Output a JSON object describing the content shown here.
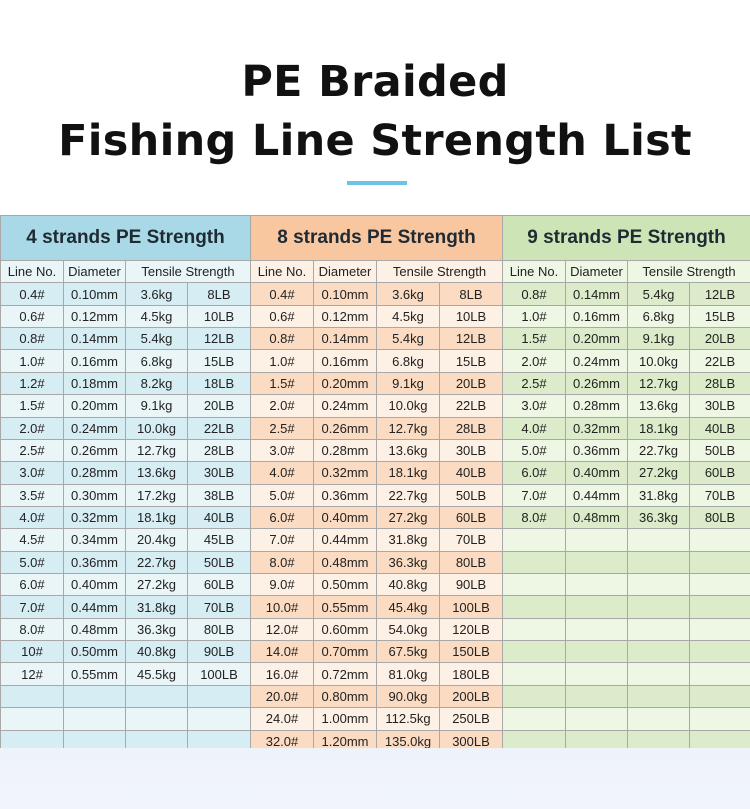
{
  "title_line1": "PE Braided",
  "title_line2": "Fishing Line Strength List",
  "colors": {
    "panel1": "#a9d9e6",
    "panel2": "#f8c7a0",
    "panel3": "#cde4b6",
    "accent": "#6cc3e6"
  },
  "tables": [
    {
      "title": "4 strands PE Strength",
      "columns": [
        "Line No.",
        "Diameter",
        "Tensile Strength"
      ],
      "rows": [
        [
          "0.4#",
          "0.10mm",
          "3.6kg",
          "8LB"
        ],
        [
          "0.6#",
          "0.12mm",
          "4.5kg",
          "10LB"
        ],
        [
          "0.8#",
          "0.14mm",
          "5.4kg",
          "12LB"
        ],
        [
          "1.0#",
          "0.16mm",
          "6.8kg",
          "15LB"
        ],
        [
          "1.2#",
          "0.18mm",
          "8.2kg",
          "18LB"
        ],
        [
          "1.5#",
          "0.20mm",
          "9.1kg",
          "20LB"
        ],
        [
          "2.0#",
          "0.24mm",
          "10.0kg",
          "22LB"
        ],
        [
          "2.5#",
          "0.26mm",
          "12.7kg",
          "28LB"
        ],
        [
          "3.0#",
          "0.28mm",
          "13.6kg",
          "30LB"
        ],
        [
          "3.5#",
          "0.30mm",
          "17.2kg",
          "38LB"
        ],
        [
          "4.0#",
          "0.32mm",
          "18.1kg",
          "40LB"
        ],
        [
          "4.5#",
          "0.34mm",
          "20.4kg",
          "45LB"
        ],
        [
          "5.0#",
          "0.36mm",
          "22.7kg",
          "50LB"
        ],
        [
          "6.0#",
          "0.40mm",
          "27.2kg",
          "60LB"
        ],
        [
          "7.0#",
          "0.44mm",
          "31.8kg",
          "70LB"
        ],
        [
          "8.0#",
          "0.48mm",
          "36.3kg",
          "80LB"
        ],
        [
          "10#",
          "0.50mm",
          "40.8kg",
          "90LB"
        ],
        [
          "12#",
          "0.55mm",
          "45.5kg",
          "100LB"
        ],
        [
          "",
          "",
          "",
          ""
        ],
        [
          "",
          "",
          "",
          ""
        ],
        [
          "",
          "",
          "",
          ""
        ]
      ]
    },
    {
      "title": "8 strands PE Strength",
      "columns": [
        "Line No.",
        "Diameter",
        "Tensile Strength"
      ],
      "rows": [
        [
          "0.4#",
          "0.10mm",
          "3.6kg",
          "8LB"
        ],
        [
          "0.6#",
          "0.12mm",
          "4.5kg",
          "10LB"
        ],
        [
          "0.8#",
          "0.14mm",
          "5.4kg",
          "12LB"
        ],
        [
          "1.0#",
          "0.16mm",
          "6.8kg",
          "15LB"
        ],
        [
          "1.5#",
          "0.20mm",
          "9.1kg",
          "20LB"
        ],
        [
          "2.0#",
          "0.24mm",
          "10.0kg",
          "22LB"
        ],
        [
          "2.5#",
          "0.26mm",
          "12.7kg",
          "28LB"
        ],
        [
          "3.0#",
          "0.28mm",
          "13.6kg",
          "30LB"
        ],
        [
          "4.0#",
          "0.32mm",
          "18.1kg",
          "40LB"
        ],
        [
          "5.0#",
          "0.36mm",
          "22.7kg",
          "50LB"
        ],
        [
          "6.0#",
          "0.40mm",
          "27.2kg",
          "60LB"
        ],
        [
          "7.0#",
          "0.44mm",
          "31.8kg",
          "70LB"
        ],
        [
          "8.0#",
          "0.48mm",
          "36.3kg",
          "80LB"
        ],
        [
          "9.0#",
          "0.50mm",
          "40.8kg",
          "90LB"
        ],
        [
          "10.0#",
          "0.55mm",
          "45.4kg",
          "100LB"
        ],
        [
          "12.0#",
          "0.60mm",
          "54.0kg",
          "120LB"
        ],
        [
          "14.0#",
          "0.70mm",
          "67.5kg",
          "150LB"
        ],
        [
          "16.0#",
          "0.72mm",
          "81.0kg",
          "180LB"
        ],
        [
          "20.0#",
          "0.80mm",
          "90.0kg",
          "200LB"
        ],
        [
          "24.0#",
          "1.00mm",
          "112.5kg",
          "250LB"
        ],
        [
          "32.0#",
          "1.20mm",
          "135.0kg",
          "300LB"
        ]
      ]
    },
    {
      "title": "9 strands PE Strength",
      "columns": [
        "Line No.",
        "Diameter",
        "Tensile Strength"
      ],
      "rows": [
        [
          "0.8#",
          "0.14mm",
          "5.4kg",
          "12LB"
        ],
        [
          "1.0#",
          "0.16mm",
          "6.8kg",
          "15LB"
        ],
        [
          "1.5#",
          "0.20mm",
          "9.1kg",
          "20LB"
        ],
        [
          "2.0#",
          "0.24mm",
          "10.0kg",
          "22LB"
        ],
        [
          "2.5#",
          "0.26mm",
          "12.7kg",
          "28LB"
        ],
        [
          "3.0#",
          "0.28mm",
          "13.6kg",
          "30LB"
        ],
        [
          "4.0#",
          "0.32mm",
          "18.1kg",
          "40LB"
        ],
        [
          "5.0#",
          "0.36mm",
          "22.7kg",
          "50LB"
        ],
        [
          "6.0#",
          "0.40mm",
          "27.2kg",
          "60LB"
        ],
        [
          "7.0#",
          "0.44mm",
          "31.8kg",
          "70LB"
        ],
        [
          "8.0#",
          "0.48mm",
          "36.3kg",
          "80LB"
        ],
        [
          "",
          "",
          "",
          ""
        ],
        [
          "",
          "",
          "",
          ""
        ],
        [
          "",
          "",
          "",
          ""
        ],
        [
          "",
          "",
          "",
          ""
        ],
        [
          "",
          "",
          "",
          ""
        ],
        [
          "",
          "",
          "",
          ""
        ],
        [
          "",
          "",
          "",
          ""
        ],
        [
          "",
          "",
          "",
          ""
        ],
        [
          "",
          "",
          "",
          ""
        ],
        [
          "",
          "",
          "",
          ""
        ]
      ]
    }
  ]
}
